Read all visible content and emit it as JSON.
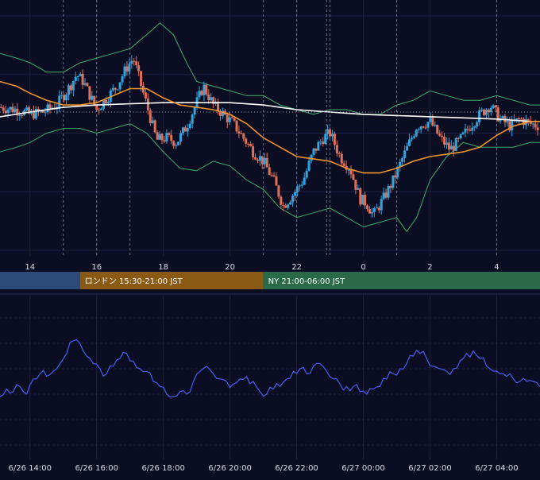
{
  "colors": {
    "background": "#0b0d22",
    "grid": "#1c2140",
    "candle_up": "#2fa6e0",
    "candle_down": "#e0705a",
    "bollinger": "#3fae6a",
    "ma_short": "#f0952a",
    "ma_long": "#ffffff",
    "level_line": "#9aa0b0",
    "indicator": "#4b5ef0",
    "axis_text": "#d8dbe6",
    "session_tokyo": "#2c4a7a",
    "session_london": "#8a5a14",
    "session_ny": "#2a6a48"
  },
  "sessions": [
    {
      "label": "",
      "color": "#2c4a7a",
      "from": 13.0,
      "to": 15.5
    },
    {
      "label": "ロンドン 15:30-21:00 JST",
      "color": "#8a5a14",
      "from": 15.5,
      "to": 21.0
    },
    {
      "label": "NY 21:00-06:00 JST",
      "color": "#2a6a48",
      "from": 21.0,
      "to": 30.0
    }
  ],
  "chart_data": [
    {
      "type": "candlestick",
      "x_ticks": [
        "14",
        "16",
        "18",
        "20",
        "22",
        "0",
        "2",
        "4"
      ],
      "x_tick_hours": [
        14,
        16,
        18,
        20,
        22,
        24,
        26,
        28
      ],
      "x_range": [
        13.1,
        29.3
      ],
      "y_range": [
        0,
        100
      ],
      "session_dividers": [
        15.0,
        16.0,
        17.0,
        21.0,
        22.0,
        22.9,
        23.0,
        25.0,
        28.0
      ],
      "level_line": 59,
      "price_path": [
        [
          13.1,
          61
        ],
        [
          13.6,
          60
        ],
        [
          14.0,
          58
        ],
        [
          14.4,
          59
        ],
        [
          14.8,
          62
        ],
        [
          15.2,
          70
        ],
        [
          15.4,
          75
        ],
        [
          15.6,
          72
        ],
        [
          15.8,
          66
        ],
        [
          16.0,
          60
        ],
        [
          16.3,
          65
        ],
        [
          16.6,
          70
        ],
        [
          16.9,
          78
        ],
        [
          17.1,
          82
        ],
        [
          17.3,
          72
        ],
        [
          17.5,
          62
        ],
        [
          17.8,
          47
        ],
        [
          18.1,
          48
        ],
        [
          18.4,
          46
        ],
        [
          18.7,
          53
        ],
        [
          19.0,
          63
        ],
        [
          19.2,
          70
        ],
        [
          19.5,
          62
        ],
        [
          19.8,
          58
        ],
        [
          20.1,
          54
        ],
        [
          20.4,
          48
        ],
        [
          20.7,
          42
        ],
        [
          21.0,
          38
        ],
        [
          21.3,
          30
        ],
        [
          21.6,
          19
        ],
        [
          21.9,
          24
        ],
        [
          22.2,
          30
        ],
        [
          22.5,
          42
        ],
        [
          22.8,
          48
        ],
        [
          23.0,
          50
        ],
        [
          23.3,
          40
        ],
        [
          23.6,
          35
        ],
        [
          23.9,
          22
        ],
        [
          24.1,
          20
        ],
        [
          24.3,
          15
        ],
        [
          24.6,
          22
        ],
        [
          24.9,
          30
        ],
        [
          25.2,
          40
        ],
        [
          25.6,
          53
        ],
        [
          26.0,
          55
        ],
        [
          26.3,
          48
        ],
        [
          26.6,
          43
        ],
        [
          26.9,
          47
        ],
        [
          27.2,
          53
        ],
        [
          27.5,
          58
        ],
        [
          27.8,
          62
        ],
        [
          28.1,
          56
        ],
        [
          28.4,
          53
        ],
        [
          28.7,
          56
        ],
        [
          29.0,
          54
        ],
        [
          29.3,
          53
        ]
      ],
      "ma_short": [
        [
          13.1,
          72
        ],
        [
          13.6,
          70
        ],
        [
          14.0,
          67
        ],
        [
          14.5,
          64
        ],
        [
          15.0,
          62
        ],
        [
          15.5,
          62
        ],
        [
          16.0,
          63
        ],
        [
          16.5,
          66
        ],
        [
          17.0,
          69
        ],
        [
          17.5,
          69
        ],
        [
          18.0,
          65
        ],
        [
          18.5,
          62
        ],
        [
          19.0,
          61
        ],
        [
          19.5,
          60
        ],
        [
          20.0,
          58
        ],
        [
          20.5,
          54
        ],
        [
          21.0,
          48
        ],
        [
          21.5,
          44
        ],
        [
          22.0,
          40
        ],
        [
          22.5,
          39
        ],
        [
          23.0,
          38
        ],
        [
          23.5,
          35
        ],
        [
          24.0,
          33
        ],
        [
          24.5,
          33
        ],
        [
          25.0,
          35
        ],
        [
          25.5,
          38
        ],
        [
          26.0,
          40
        ],
        [
          26.5,
          41
        ],
        [
          27.0,
          42
        ],
        [
          27.5,
          44
        ],
        [
          28.0,
          49
        ],
        [
          28.5,
          53
        ],
        [
          29.0,
          55
        ],
        [
          29.3,
          55
        ]
      ],
      "ma_long": [
        [
          13.1,
          57
        ],
        [
          14.0,
          59
        ],
        [
          15.0,
          61
        ],
        [
          16.0,
          62
        ],
        [
          17.0,
          62.5
        ],
        [
          18.0,
          63
        ],
        [
          19.0,
          63
        ],
        [
          20.0,
          63
        ],
        [
          21.0,
          62
        ],
        [
          22.0,
          60
        ],
        [
          23.0,
          59
        ],
        [
          24.0,
          58
        ],
        [
          25.0,
          57.5
        ],
        [
          26.0,
          57
        ],
        [
          27.0,
          56.5
        ],
        [
          28.0,
          56
        ],
        [
          29.0,
          55
        ],
        [
          29.3,
          55
        ]
      ],
      "bb_upper": [
        [
          13.1,
          84
        ],
        [
          13.6,
          82
        ],
        [
          14.0,
          80
        ],
        [
          14.5,
          76
        ],
        [
          15.0,
          76
        ],
        [
          15.5,
          80
        ],
        [
          16.0,
          82
        ],
        [
          16.5,
          84
        ],
        [
          17.0,
          86
        ],
        [
          17.5,
          92
        ],
        [
          17.9,
          97
        ],
        [
          18.3,
          92
        ],
        [
          18.7,
          80
        ],
        [
          19.0,
          72
        ],
        [
          19.5,
          70
        ],
        [
          20.0,
          68
        ],
        [
          20.5,
          66
        ],
        [
          21.0,
          66
        ],
        [
          21.5,
          62
        ],
        [
          22.0,
          60
        ],
        [
          22.5,
          58
        ],
        [
          23.0,
          60
        ],
        [
          23.5,
          60
        ],
        [
          24.0,
          58
        ],
        [
          24.5,
          58
        ],
        [
          25.0,
          62
        ],
        [
          25.5,
          64
        ],
        [
          26.0,
          68
        ],
        [
          26.5,
          66
        ],
        [
          27.0,
          64
        ],
        [
          27.5,
          64
        ],
        [
          28.0,
          66
        ],
        [
          28.5,
          64
        ],
        [
          29.0,
          62
        ],
        [
          29.3,
          62
        ]
      ],
      "bb_lower": [
        [
          13.1,
          42
        ],
        [
          13.6,
          44
        ],
        [
          14.0,
          46
        ],
        [
          14.5,
          50
        ],
        [
          15.0,
          52
        ],
        [
          15.5,
          52
        ],
        [
          16.0,
          50
        ],
        [
          16.5,
          52
        ],
        [
          17.0,
          54
        ],
        [
          17.5,
          50
        ],
        [
          18.0,
          42
        ],
        [
          18.5,
          35
        ],
        [
          19.0,
          34
        ],
        [
          19.5,
          38
        ],
        [
          20.0,
          36
        ],
        [
          20.5,
          30
        ],
        [
          21.0,
          26
        ],
        [
          21.5,
          18
        ],
        [
          22.0,
          14
        ],
        [
          22.5,
          16
        ],
        [
          23.0,
          18
        ],
        [
          23.5,
          14
        ],
        [
          24.0,
          10
        ],
        [
          24.5,
          12
        ],
        [
          25.0,
          14
        ],
        [
          25.3,
          8
        ],
        [
          25.6,
          14
        ],
        [
          26.0,
          30
        ],
        [
          26.5,
          40
        ],
        [
          27.0,
          46
        ],
        [
          27.5,
          44
        ],
        [
          28.0,
          44
        ],
        [
          28.5,
          44
        ],
        [
          29.0,
          46
        ],
        [
          29.3,
          46
        ]
      ]
    },
    {
      "type": "line",
      "name": "",
      "y_range": [
        0,
        100
      ],
      "x": [
        13.1,
        13.3,
        13.5,
        13.7,
        13.9,
        14.1,
        14.3,
        14.5,
        14.7,
        14.9,
        15.1,
        15.3,
        15.5,
        15.7,
        15.9,
        16.1,
        16.3,
        16.5,
        16.7,
        16.9,
        17.1,
        17.3,
        17.5,
        17.7,
        17.9,
        18.1,
        18.3,
        18.5,
        18.7,
        18.9,
        19.1,
        19.3,
        19.5,
        19.7,
        19.9,
        20.1,
        20.3,
        20.5,
        20.7,
        20.9,
        21.1,
        21.3,
        21.5,
        21.7,
        21.9,
        22.1,
        22.3,
        22.5,
        22.7,
        22.9,
        23.1,
        23.3,
        23.5,
        23.7,
        23.9,
        24.1,
        24.3,
        24.5,
        24.7,
        24.9,
        25.1,
        25.3,
        25.5,
        25.7,
        25.9,
        26.1,
        26.3,
        26.5,
        26.7,
        26.9,
        27.1,
        27.3,
        27.5,
        27.7,
        27.9,
        28.1,
        28.3,
        28.5,
        28.7,
        28.9,
        29.1,
        29.3
      ],
      "values": [
        38,
        44,
        42,
        46,
        40,
        52,
        56,
        54,
        58,
        64,
        72,
        82,
        80,
        70,
        64,
        60,
        56,
        62,
        68,
        72,
        66,
        60,
        58,
        50,
        46,
        40,
        38,
        42,
        40,
        50,
        58,
        62,
        56,
        52,
        50,
        48,
        52,
        54,
        50,
        42,
        40,
        44,
        46,
        52,
        58,
        60,
        56,
        62,
        64,
        58,
        52,
        48,
        46,
        46,
        42,
        40,
        44,
        46,
        52,
        56,
        60,
        64,
        70,
        72,
        68,
        62,
        60,
        58,
        60,
        66,
        72,
        74,
        68,
        62,
        58,
        56,
        54,
        52,
        50,
        50,
        50,
        46
      ]
    }
  ]
}
